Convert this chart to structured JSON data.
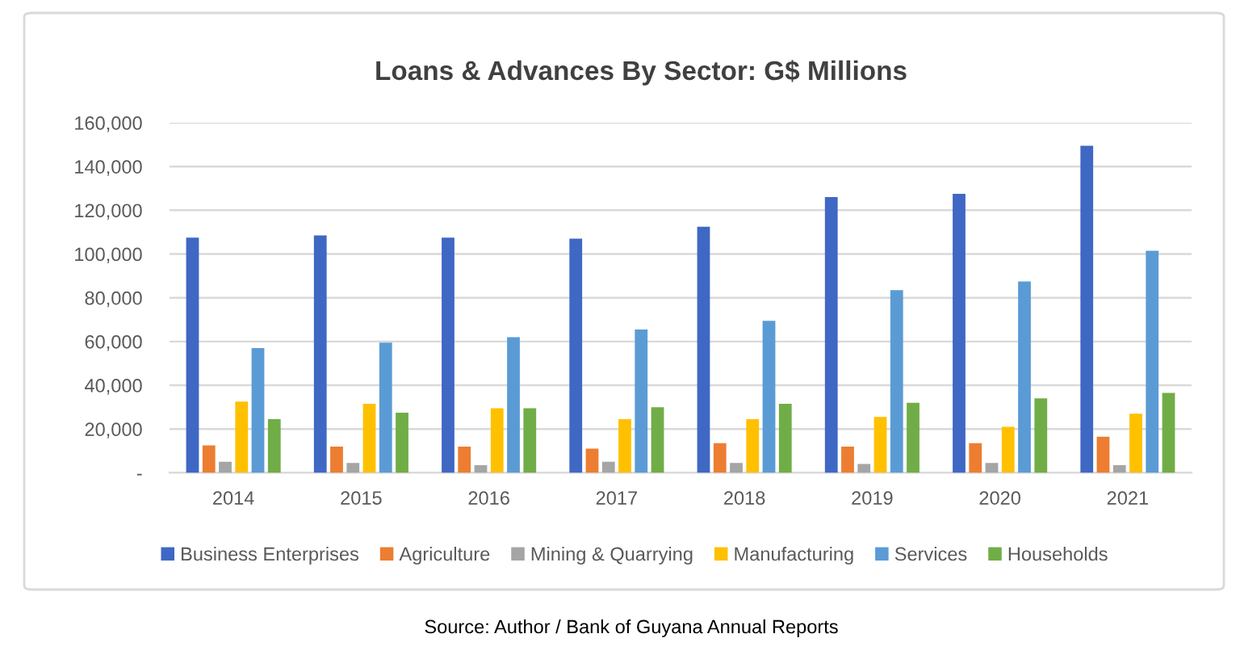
{
  "chart_data": {
    "type": "bar",
    "title": "Loans & Advances By Sector: G$ Millions",
    "categories": [
      "2014",
      "2015",
      "2016",
      "2017",
      "2018",
      "2019",
      "2020",
      "2021"
    ],
    "series": [
      {
        "name": "Business Enterprises",
        "color": "#3f68c4",
        "values": [
          107500,
          108500,
          107500,
          107000,
          112500,
          126000,
          127500,
          149500
        ]
      },
      {
        "name": "Agriculture",
        "color": "#ed7d31",
        "values": [
          12500,
          12000,
          12000,
          11000,
          13500,
          12000,
          13500,
          16500
        ]
      },
      {
        "name": "Mining & Quarrying",
        "color": "#a5a5a5",
        "values": [
          5000,
          4500,
          3500,
          5000,
          4500,
          4000,
          4500,
          3500
        ]
      },
      {
        "name": "Manufacturing",
        "color": "#ffc000",
        "values": [
          32500,
          31500,
          29500,
          24500,
          24500,
          25500,
          21000,
          27000
        ]
      },
      {
        "name": "Services",
        "color": "#5b9bd5",
        "values": [
          57000,
          59500,
          62000,
          65500,
          69500,
          83500,
          87500,
          101500
        ]
      },
      {
        "name": "Households",
        "color": "#70ad47",
        "values": [
          24500,
          27500,
          29500,
          30000,
          31500,
          32000,
          34000,
          36500
        ]
      }
    ],
    "ylim": [
      0,
      160000
    ],
    "yticks": [
      {
        "value": 0,
        "label": "-"
      },
      {
        "value": 20000,
        "label": "20,000"
      },
      {
        "value": 40000,
        "label": "40,000"
      },
      {
        "value": 60000,
        "label": "60,000"
      },
      {
        "value": 80000,
        "label": "80,000"
      },
      {
        "value": 100000,
        "label": "100,000"
      },
      {
        "value": 120000,
        "label": "120,000"
      },
      {
        "value": 140000,
        "label": "140,000"
      },
      {
        "value": 160000,
        "label": "160,000"
      }
    ],
    "grid": "y",
    "legend": "bottom",
    "annotations": [
      "Source: Author / Bank of Guyana Annual Reports"
    ]
  }
}
